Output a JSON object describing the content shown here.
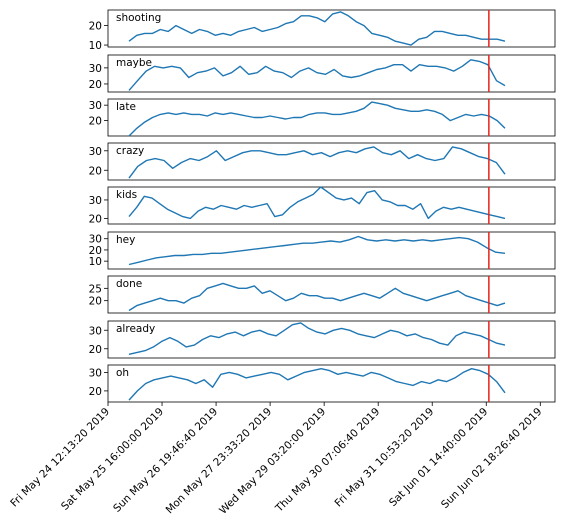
{
  "chart_data": {
    "type": "line",
    "line_color": "#1f77b4",
    "marker_color": "#e8221b",
    "marker_x": "Sat Jun 01 16:00:00 2019",
    "x_range": [
      "Fri May 24 12:13:20 2019",
      "Mon Jun 03 02:00:00 2019"
    ],
    "x_ticks": [
      "Fri May 24 12:13:20  2019",
      "Sat May 25 16:00:00  2019",
      "Sun May 26 19:46:40  2019",
      "Mon May 27 23:33:20  2019",
      "Wed May 29 03:20:00  2019",
      "Thu May 30 07:06:40  2019",
      "Fri May 31 10:53:20  2019",
      "Sat Jun 01 14:40:00  2019",
      "Sun Jun 02 18:26:40  2019"
    ],
    "panels": [
      {
        "label": "shooting",
        "ylim": [
          9,
          28
        ],
        "yticks": [
          10,
          20
        ],
        "values": [
          12,
          15,
          16,
          16,
          18,
          17,
          20,
          18,
          16,
          18,
          17,
          15,
          16,
          15,
          17,
          18,
          19,
          17,
          18,
          19,
          21,
          22,
          25,
          25,
          24,
          22,
          26,
          27,
          25,
          22,
          20,
          16,
          15,
          14,
          12,
          11,
          10,
          13,
          14,
          17,
          17,
          16,
          15,
          15,
          14,
          13,
          13,
          13,
          12
        ]
      },
      {
        "label": "maybe",
        "ylim": [
          15,
          38
        ],
        "yticks": [
          20,
          30
        ],
        "values": [
          16,
          22,
          28,
          31,
          30,
          31,
          30,
          24,
          27,
          28,
          30,
          25,
          27,
          31,
          26,
          27,
          31,
          28,
          27,
          24,
          28,
          30,
          27,
          26,
          29,
          25,
          24,
          25,
          27,
          29,
          30,
          32,
          32,
          28,
          32,
          31,
          31,
          30,
          28,
          31,
          35,
          34,
          32,
          22,
          19
        ]
      },
      {
        "label": "late",
        "ylim": [
          10,
          34
        ],
        "yticks": [
          20,
          30
        ],
        "values": [
          10,
          15,
          19,
          22,
          24,
          25,
          24,
          25,
          24,
          24,
          23,
          25,
          24,
          25,
          24,
          23,
          22,
          22,
          23,
          22,
          21,
          22,
          22,
          24,
          25,
          25,
          24,
          24,
          25,
          26,
          28,
          32,
          31,
          30,
          28,
          27,
          26,
          26,
          27,
          26,
          24,
          20,
          22,
          24,
          23,
          24,
          23,
          20,
          15
        ]
      },
      {
        "label": "crazy",
        "ylim": [
          15,
          34
        ],
        "yticks": [
          20,
          30
        ],
        "values": [
          16,
          22,
          25,
          26,
          25,
          21,
          24,
          26,
          25,
          27,
          30,
          25,
          27,
          29,
          30,
          30,
          29,
          28,
          28,
          29,
          30,
          28,
          29,
          27,
          29,
          30,
          29,
          31,
          32,
          29,
          28,
          30,
          26,
          28,
          26,
          25,
          26,
          32,
          31,
          29,
          27,
          26,
          24,
          18
        ]
      },
      {
        "label": "kids",
        "ylim": [
          17,
          37
        ],
        "yticks": [
          20,
          30
        ],
        "values": [
          21,
          26,
          32,
          31,
          28,
          25,
          23,
          21,
          20,
          24,
          26,
          25,
          27,
          26,
          25,
          27,
          26,
          27,
          28,
          21,
          22,
          26,
          29,
          31,
          33,
          37,
          34,
          31,
          30,
          31,
          28,
          34,
          35,
          30,
          29,
          27,
          27,
          25,
          28,
          20,
          24,
          26,
          25,
          26,
          25,
          24,
          23,
          22,
          21,
          20
        ]
      },
      {
        "label": "hey",
        "ylim": [
          3,
          36
        ],
        "yticks": [
          10,
          20,
          30
        ],
        "values": [
          7,
          9,
          11,
          13,
          14,
          15,
          15,
          16,
          16,
          17,
          17,
          18,
          19,
          20,
          21,
          22,
          23,
          24,
          25,
          26,
          26,
          27,
          28,
          27,
          29,
          32,
          29,
          28,
          29,
          28,
          29,
          28,
          29,
          28,
          29,
          30,
          31,
          30,
          27,
          22,
          18,
          17
        ]
      },
      {
        "label": "done",
        "ylim": [
          15,
          30
        ],
        "yticks": [
          20,
          25
        ],
        "values": [
          16,
          18,
          19,
          20,
          21,
          20,
          20,
          19,
          21,
          22,
          25,
          26,
          27,
          26,
          25,
          25,
          26,
          23,
          24,
          22,
          20,
          21,
          23,
          22,
          22,
          21,
          21,
          20,
          21,
          22,
          23,
          22,
          21,
          23,
          25,
          23,
          22,
          21,
          20,
          21,
          22,
          23,
          24,
          22,
          21,
          20,
          19,
          18,
          19
        ]
      },
      {
        "label": "already",
        "ylim": [
          15,
          35
        ],
        "yticks": [
          20,
          30
        ],
        "values": [
          17,
          18,
          19,
          21,
          24,
          26,
          24,
          21,
          22,
          25,
          27,
          26,
          28,
          29,
          27,
          29,
          30,
          28,
          27,
          30,
          33,
          34,
          31,
          29,
          28,
          30,
          31,
          30,
          28,
          27,
          26,
          28,
          30,
          29,
          27,
          28,
          26,
          25,
          23,
          22,
          27,
          29,
          28,
          27,
          25,
          23,
          22
        ]
      },
      {
        "label": "oh",
        "ylim": [
          14,
          34
        ],
        "yticks": [
          20,
          30
        ],
        "values": [
          15,
          20,
          24,
          26,
          27,
          28,
          27,
          26,
          24,
          26,
          22,
          29,
          30,
          29,
          27,
          28,
          29,
          30,
          29,
          26,
          28,
          30,
          31,
          32,
          31,
          29,
          30,
          29,
          28,
          30,
          29,
          27,
          25,
          24,
          23,
          25,
          24,
          26,
          25,
          27,
          30,
          32,
          31,
          29,
          25,
          19
        ]
      }
    ]
  }
}
